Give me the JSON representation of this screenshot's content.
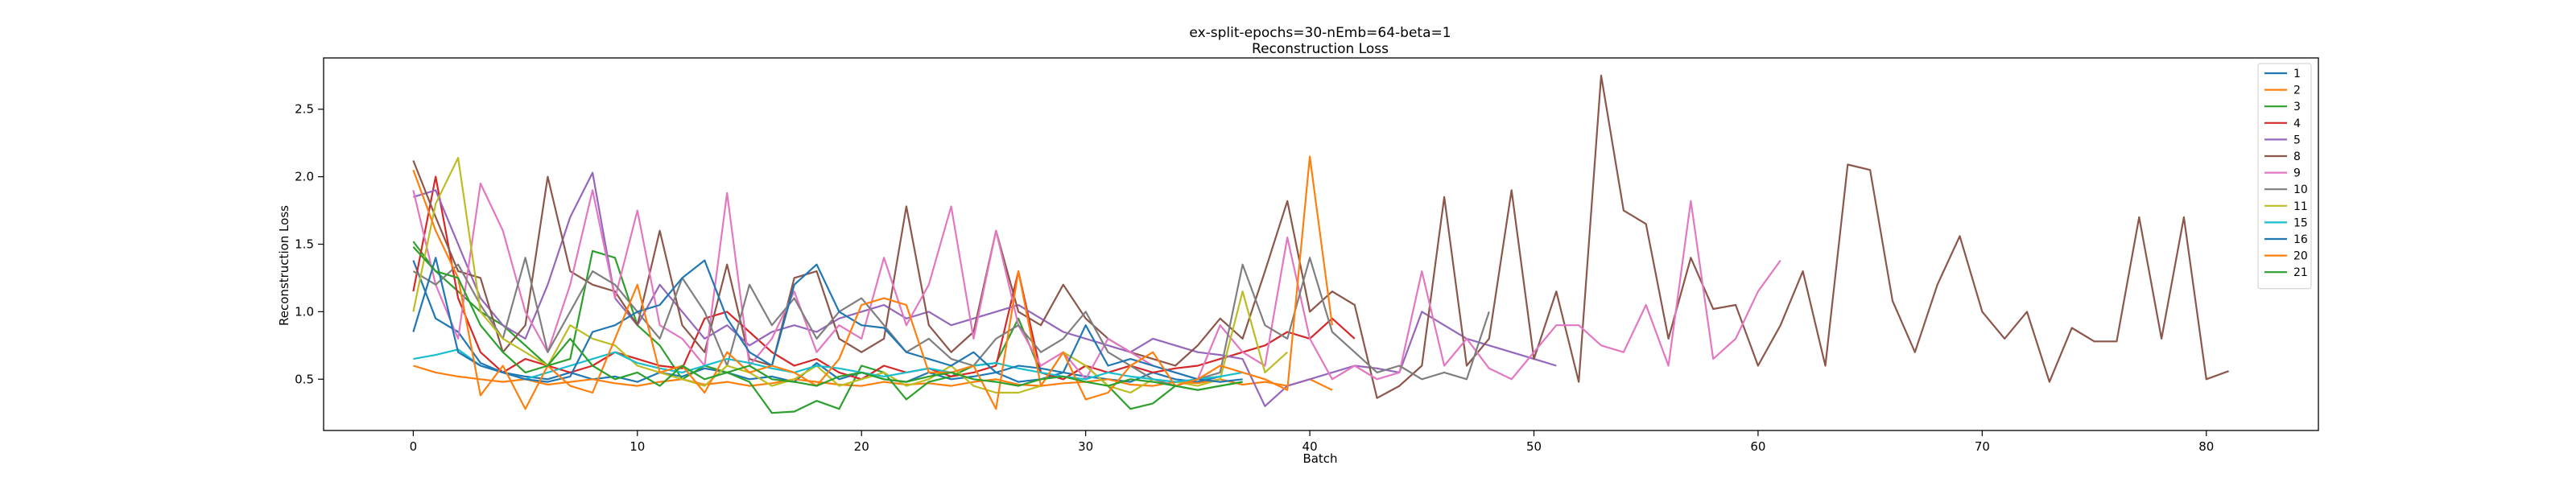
{
  "chart_data": {
    "type": "line",
    "title": "ex-split-epochs=30-nEmb=64-beta=1",
    "subtitle": "Reconstruction Loss",
    "xlabel": "Batch",
    "ylabel": "Reconstruction Loss",
    "xlim": [
      -4,
      85
    ],
    "ylim": [
      0.12,
      2.88
    ],
    "xticks": [
      0,
      10,
      20,
      30,
      40,
      50,
      60,
      70,
      80
    ],
    "yticks": [
      0.5,
      1.0,
      1.5,
      2.0,
      2.5
    ],
    "ytick_labels": [
      "0.5",
      "1.0",
      "1.5",
      "2.0",
      "2.5"
    ],
    "grid": false,
    "legend_position": "top-right",
    "series": [
      {
        "name": "1",
        "color": "#1f77b4",
        "values": [
          1.38,
          0.95,
          0.85,
          0.62,
          0.55,
          0.52,
          0.5,
          0.55,
          0.5,
          0.52,
          0.48,
          0.55,
          0.52,
          0.58,
          0.55,
          0.5,
          0.52,
          0.48,
          0.62,
          0.5,
          0.55,
          0.5,
          0.48,
          0.55,
          0.5,
          0.52,
          0.55,
          0.48,
          0.5,
          0.55,
          0.52,
          0.5,
          0.48,
          0.55,
          0.5,
          0.48,
          0.52
        ]
      },
      {
        "name": "2",
        "color": "#ff7f0e",
        "values": [
          0.6,
          0.55,
          0.52,
          0.5,
          0.48,
          0.5,
          0.46,
          0.48,
          0.5,
          0.47,
          0.45,
          0.48,
          0.5,
          0.46,
          0.48,
          0.45,
          0.47,
          0.5,
          0.48,
          0.46,
          0.45,
          0.48,
          0.46,
          0.47,
          0.45,
          0.48,
          0.5,
          0.46,
          0.45,
          0.47,
          0.48,
          0.5,
          0.46,
          0.45,
          0.48,
          0.47,
          0.5,
          0.46,
          0.48,
          0.45,
          0.5,
          0.42
        ]
      },
      {
        "name": "3",
        "color": "#2ca02c",
        "values": [
          1.52,
          1.3,
          1.15,
          1.0,
          0.9,
          0.75,
          0.6,
          0.65,
          1.45,
          1.4,
          0.9,
          0.75,
          0.5,
          0.6,
          0.55,
          0.48,
          0.25,
          0.26,
          0.34,
          0.28,
          0.6,
          0.55,
          0.35,
          0.48,
          0.52,
          0.6,
          0.62,
          0.95,
          0.55,
          0.5,
          0.6,
          0.45,
          0.28,
          0.32,
          0.45,
          0.42,
          0.45,
          0.48
        ]
      },
      {
        "name": "4",
        "color": "#d62728",
        "values": [
          1.15,
          2.0,
          1.1,
          0.7,
          0.55,
          0.65,
          0.6,
          0.55,
          0.6,
          0.7,
          0.65,
          0.6,
          0.58,
          0.95,
          1.0,
          0.85,
          0.7,
          0.6,
          0.65,
          0.55,
          0.5,
          0.6,
          0.55,
          0.58,
          0.52,
          0.55,
          0.6,
          1.3,
          0.55,
          0.5,
          0.6,
          0.55,
          0.6,
          0.55,
          0.58,
          0.6,
          0.65,
          0.7,
          0.75,
          0.85,
          0.8,
          0.95,
          0.8
        ]
      },
      {
        "name": "5",
        "color": "#9467bd",
        "values": [
          1.85,
          1.9,
          1.5,
          1.1,
          0.9,
          0.8,
          1.2,
          1.7,
          2.03,
          1.1,
          0.9,
          1.2,
          1.0,
          0.8,
          0.9,
          0.75,
          0.85,
          0.9,
          0.85,
          0.95,
          1.0,
          1.05,
          0.95,
          1.0,
          0.9,
          0.95,
          1.0,
          1.05,
          0.95,
          0.85,
          0.8,
          0.75,
          0.7,
          0.8,
          0.75,
          0.7,
          0.68,
          0.65,
          0.3,
          0.45,
          0.5,
          0.55,
          0.6,
          0.58,
          0.55,
          1.0,
          0.9,
          0.8,
          0.75,
          0.7,
          0.65,
          0.6
        ]
      },
      {
        "name": "8",
        "color": "#8c564b",
        "values": [
          2.12,
          1.7,
          1.3,
          1.25,
          0.7,
          0.9,
          2.0,
          1.3,
          1.2,
          1.15,
          0.9,
          1.6,
          0.9,
          0.7,
          1.35,
          0.65,
          0.6,
          1.25,
          1.3,
          0.8,
          0.7,
          0.8,
          1.78,
          0.9,
          0.7,
          0.85,
          1.6,
          1.0,
          0.9,
          1.2,
          0.95,
          0.8,
          0.7,
          0.65,
          0.6,
          0.75,
          0.95,
          0.8,
          1.3,
          1.82,
          1.0,
          1.15,
          1.05,
          0.36,
          0.45,
          0.6,
          1.85,
          0.6,
          0.8,
          1.9,
          0.65,
          1.15,
          0.48,
          2.75,
          1.75,
          1.65,
          0.8,
          1.4,
          1.02,
          1.05,
          0.6,
          0.9,
          1.3,
          0.6,
          2.09,
          2.05,
          1.08,
          0.7,
          1.2,
          1.56,
          1.0,
          0.8,
          1.0,
          0.48,
          0.88,
          0.78,
          0.78,
          1.7,
          0.8,
          1.7,
          0.5,
          0.56
        ]
      },
      {
        "name": "9",
        "color": "#e377c2",
        "values": [
          1.9,
          1.2,
          0.8,
          1.95,
          1.6,
          1.0,
          0.7,
          1.2,
          1.9,
          1.1,
          1.75,
          0.9,
          0.8,
          0.6,
          1.88,
          0.6,
          0.8,
          1.15,
          0.7,
          0.9,
          0.8,
          1.4,
          0.9,
          1.2,
          1.78,
          0.8,
          1.6,
          0.9,
          0.6,
          0.7,
          0.5,
          0.8,
          0.7,
          0.6,
          0.55,
          0.5,
          0.9,
          0.7,
          0.6,
          1.55,
          0.8,
          0.5,
          0.6,
          0.5,
          0.55,
          1.3,
          0.6,
          0.8,
          0.58,
          0.5,
          0.7,
          0.9,
          0.9,
          0.75,
          0.7,
          1.05,
          0.6,
          1.82,
          0.65,
          0.8,
          1.15,
          1.38
        ]
      },
      {
        "name": "10",
        "color": "#7f7f7f",
        "values": [
          1.3,
          1.2,
          1.35,
          1.05,
          0.8,
          1.4,
          0.7,
          1.0,
          1.3,
          1.2,
          1.0,
          0.8,
          1.25,
          1.0,
          0.6,
          1.2,
          0.9,
          1.1,
          0.8,
          1.0,
          1.1,
          0.9,
          0.7,
          0.8,
          0.65,
          0.6,
          0.8,
          0.9,
          0.7,
          0.8,
          1.0,
          0.7,
          0.6,
          0.5,
          0.45,
          0.5,
          0.55,
          1.35,
          0.9,
          0.8,
          1.4,
          0.85,
          0.7,
          0.55,
          0.6,
          0.5,
          0.55,
          0.5,
          1.0
        ]
      },
      {
        "name": "11",
        "color": "#bcbd22",
        "values": [
          1.0,
          1.8,
          2.14,
          1.0,
          0.8,
          0.7,
          0.6,
          0.9,
          0.8,
          0.75,
          0.6,
          0.55,
          0.5,
          0.45,
          0.6,
          0.55,
          0.45,
          0.5,
          0.6,
          0.45,
          0.5,
          0.55,
          0.45,
          0.5,
          0.6,
          0.45,
          0.4,
          0.4,
          0.45,
          0.7,
          0.6,
          0.45,
          0.4,
          0.5,
          0.48,
          0.45,
          0.5,
          1.15,
          0.55,
          0.7
        ]
      },
      {
        "name": "15",
        "color": "#17becf",
        "values": [
          0.65,
          0.68,
          0.72,
          0.6,
          0.55,
          0.5,
          0.55,
          0.6,
          0.65,
          0.7,
          0.62,
          0.58,
          0.55,
          0.6,
          0.65,
          0.62,
          0.58,
          0.55,
          0.6,
          0.58,
          0.55,
          0.52,
          0.55,
          0.58,
          0.55,
          0.6,
          0.62,
          0.58,
          0.55,
          0.52,
          0.5,
          0.55,
          0.52,
          0.5,
          0.48,
          0.5,
          0.52,
          0.55
        ]
      },
      {
        "name": "16",
        "color": "#1f77b4",
        "values": [
          0.85,
          1.4,
          0.7,
          0.6,
          0.55,
          0.5,
          0.48,
          0.52,
          0.85,
          0.9,
          1.0,
          1.05,
          1.25,
          1.38,
          0.95,
          0.7,
          0.6,
          1.2,
          1.35,
          1.0,
          0.9,
          0.88,
          0.7,
          0.65,
          0.6,
          0.7,
          0.55,
          0.6,
          0.58,
          0.55,
          0.9,
          0.6,
          0.65,
          0.6,
          0.55,
          0.5,
          0.48,
          0.5
        ]
      },
      {
        "name": "20",
        "color": "#ff7f0e",
        "values": [
          2.05,
          1.6,
          1.25,
          0.38,
          0.6,
          0.28,
          0.6,
          0.45,
          0.4,
          0.8,
          1.2,
          0.55,
          0.6,
          0.4,
          0.7,
          0.55,
          0.6,
          0.55,
          0.45,
          0.65,
          1.05,
          1.1,
          1.05,
          0.55,
          0.55,
          0.6,
          0.28,
          1.3,
          0.45,
          0.7,
          0.35,
          0.4,
          0.6,
          0.7,
          0.45,
          0.5,
          0.6,
          0.55,
          0.5,
          0.42,
          2.15,
          0.9
        ]
      },
      {
        "name": "21",
        "color": "#2ca02c",
        "values": [
          1.48,
          1.3,
          1.25,
          0.9,
          0.7,
          0.55,
          0.6,
          0.8,
          0.6,
          0.5,
          0.55,
          0.45,
          0.6,
          0.5,
          0.55,
          0.6,
          0.5,
          0.48,
          0.45,
          0.52,
          0.55,
          0.5,
          0.48,
          0.52,
          0.55,
          0.5,
          0.48,
          0.45,
          0.5,
          0.52,
          0.48,
          0.45,
          0.5,
          0.48,
          0.45,
          0.42,
          0.45,
          0.48
        ]
      }
    ]
  }
}
